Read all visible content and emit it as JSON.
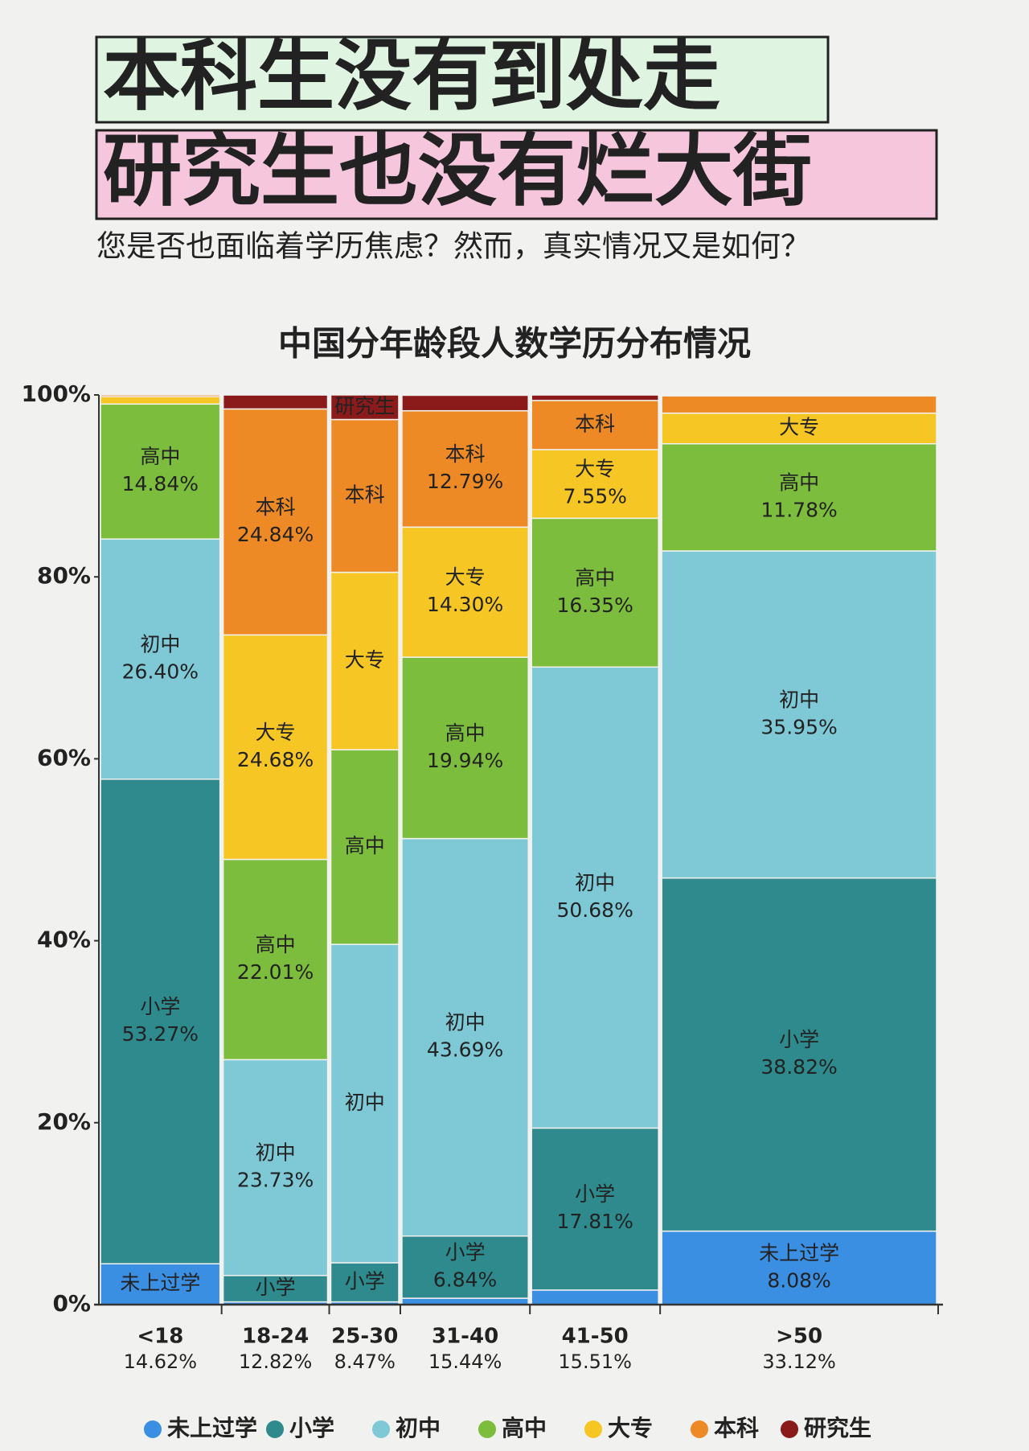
{
  "header": {
    "title_lines": [
      "本科生没有到处走",
      "研究生也没有烂大街"
    ],
    "subtitle": "您是否也面临着学历焦虑？然而，真实情况又是如何？"
  },
  "chart_data": {
    "type": "marimekko",
    "title": "中国分年龄段人数学历分布情况",
    "categories": [
      "<18",
      "18-24",
      "25-30",
      "31-40",
      "41-50",
      ">50"
    ],
    "widths": [
      14.62,
      12.82,
      8.47,
      15.44,
      15.51,
      33.12
    ],
    "width_labels": [
      "14.62%",
      "12.82%",
      "8.47%",
      "15.44%",
      "15.51%",
      "33.12%"
    ],
    "ylim": [
      0,
      100
    ],
    "yticks": [
      {
        "value": 0,
        "label": "0%"
      },
      {
        "value": 20,
        "label": "20%"
      },
      {
        "value": 40,
        "label": "40%"
      },
      {
        "value": 60,
        "label": "60%"
      },
      {
        "value": 80,
        "label": "80%"
      },
      {
        "value": 100,
        "label": "100%"
      }
    ],
    "series": [
      {
        "name": "未上过学",
        "color": "#3b8fe3",
        "values": [
          4.49,
          0.3,
          0.3,
          0.7,
          1.6,
          8.08
        ],
        "value_labels": [
          null,
          null,
          null,
          null,
          null,
          "8.08%"
        ],
        "labeled": [
          true,
          false,
          false,
          false,
          false,
          true
        ]
      },
      {
        "name": "小学",
        "color": "#2e8a8c",
        "values": [
          53.27,
          2.9,
          4.3,
          6.84,
          17.81,
          38.82
        ],
        "value_labels": [
          "53.27%",
          null,
          null,
          "6.84%",
          "17.81%",
          "38.82%"
        ],
        "labeled": [
          true,
          true,
          true,
          true,
          true,
          true
        ]
      },
      {
        "name": "初中",
        "color": "#7fc8d6",
        "values": [
          26.4,
          23.73,
          35.0,
          43.69,
          50.68,
          35.95
        ],
        "value_labels": [
          "26.40%",
          "23.73%",
          null,
          "43.69%",
          "50.68%",
          "35.95%"
        ],
        "labeled": [
          true,
          true,
          true,
          true,
          true,
          true
        ]
      },
      {
        "name": "高中",
        "color": "#7dbd3d",
        "values": [
          14.84,
          22.01,
          21.4,
          19.94,
          16.35,
          11.78
        ],
        "value_labels": [
          "14.84%",
          "22.01%",
          null,
          "19.94%",
          "16.35%",
          "11.78%"
        ],
        "labeled": [
          true,
          true,
          true,
          true,
          true,
          true
        ]
      },
      {
        "name": "大专",
        "color": "#f6c625",
        "values": [
          0.8,
          24.68,
          19.5,
          14.3,
          7.55,
          3.37
        ],
        "value_labels": [
          null,
          "24.68%",
          null,
          "14.30%",
          "7.55%",
          null
        ],
        "labeled": [
          false,
          true,
          true,
          true,
          true,
          true
        ]
      },
      {
        "name": "本科",
        "color": "#ee8a26",
        "values": [
          0.2,
          24.84,
          16.8,
          12.79,
          5.4,
          1.9
        ],
        "value_labels": [
          null,
          "24.84%",
          null,
          "12.79%",
          null,
          null
        ],
        "labeled": [
          false,
          true,
          true,
          true,
          true,
          false
        ]
      },
      {
        "name": "研究生",
        "color": "#8b1b1b",
        "values": [
          0,
          1.53,
          2.7,
          1.7,
          0.6,
          0.1
        ],
        "value_labels": [
          null,
          null,
          null,
          null,
          null,
          null
        ],
        "labeled": [
          false,
          false,
          true,
          false,
          false,
          false
        ]
      }
    ],
    "legend": "bottom"
  }
}
